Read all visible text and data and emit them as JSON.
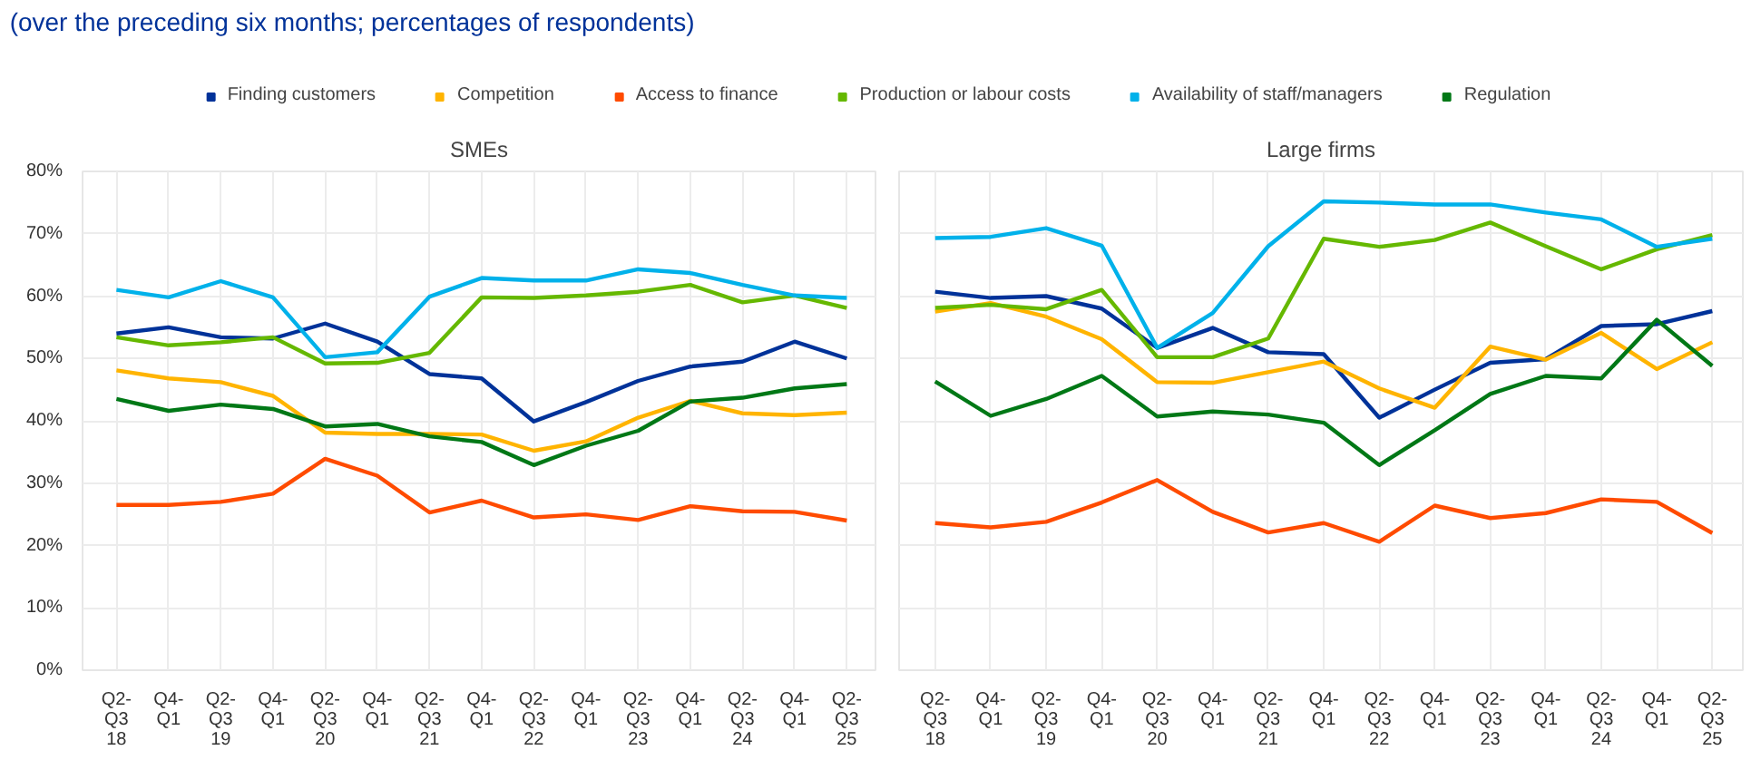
{
  "chart_data": [
    {
      "type": "line",
      "title": "SMEs",
      "subtitle": "(over the preceding six months; percentages of respondents)",
      "categories": [
        "Q2-\nQ3\n18",
        "Q4-\nQ1",
        "Q2-\nQ3\n19",
        "Q4-\nQ1",
        "Q2-\nQ3\n20",
        "Q4-\nQ1",
        "Q2-\nQ3\n21",
        "Q4-\nQ1",
        "Q2-\nQ3\n22",
        "Q4-\nQ1",
        "Q2-\nQ3\n23",
        "Q4-\nQ1",
        "Q2-\nQ3\n24",
        "Q4-\nQ1",
        "Q2-\nQ3\n25"
      ],
      "ylim": [
        0,
        80
      ],
      "yticks": [
        {
          "value": 0,
          "label": "0%"
        },
        {
          "value": 10,
          "label": "10%"
        },
        {
          "value": 20,
          "label": "20%"
        },
        {
          "value": 30,
          "label": "30%"
        },
        {
          "value": 40,
          "label": "40%"
        },
        {
          "value": 50,
          "label": "50%"
        },
        {
          "value": 60,
          "label": "60%"
        },
        {
          "value": 70,
          "label": "70%"
        },
        {
          "value": 80,
          "label": "80%"
        }
      ],
      "grid": true,
      "legend": "top",
      "marker": "none",
      "line_style": "solid",
      "series": [
        {
          "name": "Finding customers",
          "color": "#003299",
          "values": [
            54.0,
            55.0,
            53.4,
            53.2,
            55.6,
            52.7,
            47.5,
            46.8,
            39.9,
            43.0,
            46.4,
            48.7,
            49.5,
            52.7,
            50.0
          ]
        },
        {
          "name": "Competition",
          "color": "#ffb400",
          "values": [
            48.1,
            46.8,
            46.2,
            44.0,
            38.1,
            37.9,
            37.9,
            37.8,
            35.2,
            36.7,
            40.5,
            43.2,
            41.2,
            40.9,
            41.3
          ]
        },
        {
          "name": "Access to finance",
          "color": "#ff4b00",
          "values": [
            26.5,
            26.5,
            27.0,
            28.3,
            33.9,
            31.2,
            25.3,
            27.2,
            24.5,
            25.0,
            24.1,
            26.3,
            25.5,
            25.4,
            24.0
          ]
        },
        {
          "name": "Production or labour costs",
          "color": "#65b800",
          "values": [
            53.4,
            52.1,
            52.6,
            53.4,
            49.2,
            49.3,
            50.9,
            59.8,
            59.7,
            60.1,
            60.7,
            61.8,
            59.0,
            60.1,
            58.1
          ]
        },
        {
          "name": "Availability of staff/managers",
          "color": "#00b1ea",
          "values": [
            61.0,
            59.8,
            62.4,
            59.8,
            50.2,
            51.0,
            59.9,
            62.9,
            62.5,
            62.5,
            64.3,
            63.7,
            61.8,
            60.1,
            59.7
          ]
        },
        {
          "name": "Regulation",
          "color": "#007816",
          "values": [
            43.5,
            41.6,
            42.6,
            41.9,
            39.1,
            39.5,
            37.5,
            36.6,
            32.9,
            36.0,
            38.4,
            43.1,
            43.7,
            45.2,
            45.9
          ]
        }
      ]
    },
    {
      "type": "line",
      "title": "Large firms",
      "categories": [
        "Q2-\nQ3\n18",
        "Q4-\nQ1",
        "Q2-\nQ3\n19",
        "Q4-\nQ1",
        "Q2-\nQ3\n20",
        "Q4-\nQ1",
        "Q2-\nQ3\n21",
        "Q4-\nQ1",
        "Q2-\nQ3\n22",
        "Q4-\nQ1",
        "Q2-\nQ3\n23",
        "Q4-\nQ1",
        "Q2-\nQ3\n24",
        "Q4-\nQ1",
        "Q2-\nQ3\n25"
      ],
      "ylim": [
        0,
        80
      ],
      "yticks": [
        {
          "value": 0,
          "label": null
        },
        {
          "value": 10,
          "label": null
        },
        {
          "value": 20,
          "label": null
        },
        {
          "value": 30,
          "label": null
        },
        {
          "value": 40,
          "label": null
        },
        {
          "value": 50,
          "label": null
        },
        {
          "value": 60,
          "label": null
        },
        {
          "value": 70,
          "label": null
        },
        {
          "value": 80,
          "label": null
        }
      ],
      "grid": true,
      "tick_labels": "x",
      "marker": "none",
      "line_style": "solid",
      "series": [
        {
          "color": "#003299",
          "values": [
            60.7,
            59.7,
            60.0,
            58.0,
            51.7,
            54.9,
            51.0,
            50.7,
            40.5,
            45.0,
            49.3,
            49.9,
            55.2,
            55.5,
            57.6
          ]
        },
        {
          "color": "#ffb400",
          "values": [
            57.5,
            58.9,
            56.7,
            53.1,
            46.2,
            46.1,
            47.8,
            49.5,
            45.2,
            42.1,
            51.9,
            49.8,
            54.1,
            48.3,
            52.6
          ]
        },
        {
          "color": "#ff4b00",
          "values": [
            23.6,
            22.9,
            23.8,
            26.9,
            30.5,
            25.4,
            22.1,
            23.6,
            20.6,
            26.4,
            24.4,
            25.2,
            27.4,
            27.0,
            22.0
          ]
        },
        {
          "color": "#65b800",
          "values": [
            58.1,
            58.6,
            57.9,
            61.0,
            50.2,
            50.2,
            53.2,
            69.2,
            67.9,
            69.0,
            71.8,
            68.0,
            64.3,
            67.5,
            69.8
          ]
        },
        {
          "color": "#00b1ea",
          "values": [
            69.3,
            69.5,
            70.9,
            68.1,
            51.7,
            57.3,
            68.0,
            75.2,
            75.0,
            74.7,
            74.7,
            73.4,
            72.3,
            67.9,
            69.2
          ]
        },
        {
          "color": "#007816",
          "values": [
            46.3,
            40.8,
            43.5,
            47.2,
            40.7,
            41.5,
            41.0,
            39.7,
            32.9,
            38.5,
            44.3,
            47.2,
            46.8,
            56.2,
            48.8
          ]
        }
      ]
    }
  ]
}
